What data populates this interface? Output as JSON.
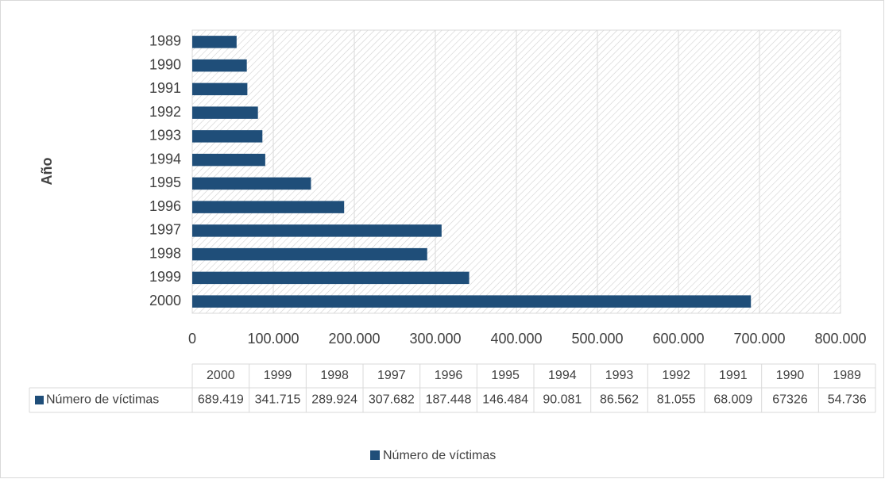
{
  "chart_data": {
    "type": "barh",
    "y_label": "Año",
    "categories": [
      "2000",
      "1999",
      "1998",
      "1997",
      "1996",
      "1995",
      "1994",
      "1993",
      "1992",
      "1991",
      "1990",
      "1989"
    ],
    "series": [
      {
        "name": "Número de víctimas",
        "color": "#1f4e79",
        "values": [
          689419,
          341715,
          289924,
          307682,
          187448,
          146484,
          90081,
          86562,
          81055,
          68009,
          67326,
          54736
        ],
        "value_labels": [
          "689.419",
          "341.715",
          "289.924",
          "307.682",
          "187.448",
          "146.484",
          "90.081",
          "86.562",
          "81.055",
          "68.009",
          "67326",
          "54.736"
        ]
      }
    ],
    "xlim": [
      0,
      800000
    ],
    "xticks": [
      0,
      {
        "value": 100000,
        "label": "100.000"
      },
      {
        "value": 200000,
        "label": "200.000"
      },
      {
        "value": 300000,
        "label": "300.000"
      },
      {
        "value": 400000,
        "label": "400.000"
      },
      {
        "value": 500000,
        "label": "500.000"
      },
      {
        "value": 600000,
        "label": "600.000"
      },
      {
        "value": 700000,
        "label": "700.000"
      },
      {
        "value": 800000,
        "label": "800.000"
      }
    ],
    "grid": true,
    "legend": "bottom"
  }
}
